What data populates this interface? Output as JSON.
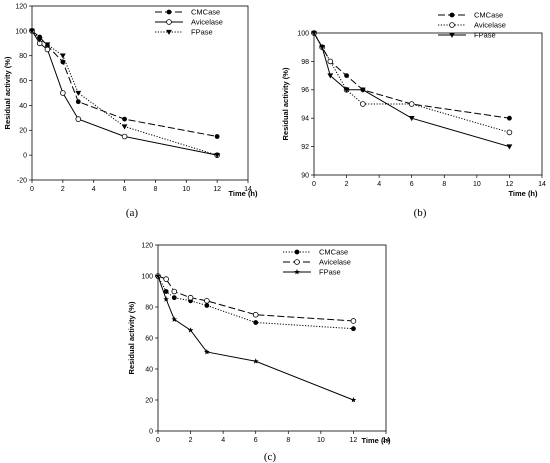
{
  "chart_data": [
    {
      "id": "a",
      "type": "line",
      "caption": "(a)",
      "xlabel": "Time (h)",
      "ylabel": "Residual activity (%)",
      "xlim": [
        0,
        14
      ],
      "ylim": [
        -20,
        120
      ],
      "xticks": [
        "0",
        "2",
        "4",
        "6",
        "8",
        "10",
        "12",
        "14"
      ],
      "yticks": [
        "-20",
        "0",
        "20",
        "40",
        "60",
        "80",
        "100",
        "120"
      ],
      "legend_position": "top-right",
      "series": [
        {
          "name": "CMCase",
          "style": "dashed",
          "marker": "filled-circle",
          "x": [
            0,
            0.5,
            1,
            2,
            3,
            6,
            12
          ],
          "y": [
            100,
            95,
            88,
            75,
            43,
            29,
            15
          ]
        },
        {
          "name": "Avicelase",
          "style": "solid",
          "marker": "open-circle",
          "x": [
            0,
            0.5,
            1,
            2,
            3,
            6,
            12
          ],
          "y": [
            100,
            90,
            85,
            50,
            29,
            15,
            0
          ]
        },
        {
          "name": "FPase",
          "style": "dotted",
          "marker": "filled-triangle-down",
          "x": [
            0,
            0.5,
            1,
            2,
            3,
            6,
            12
          ],
          "y": [
            100,
            93,
            89,
            80,
            50,
            23,
            0
          ]
        }
      ]
    },
    {
      "id": "b",
      "type": "line",
      "caption": "(b)",
      "xlabel": "Time (h)",
      "ylabel": "Residual activity (%)",
      "xlim": [
        0,
        14
      ],
      "ylim": [
        90,
        100
      ],
      "xticks": [
        "0",
        "2",
        "4",
        "6",
        "8",
        "10",
        "12",
        "14"
      ],
      "yticks": [
        "90",
        "92",
        "94",
        "96",
        "98",
        "100"
      ],
      "legend_position": "top-right",
      "series": [
        {
          "name": "CMCase",
          "style": "dashed",
          "marker": "filled-circle",
          "x": [
            0,
            0.5,
            1,
            2,
            3,
            6,
            12
          ],
          "y": [
            100,
            99,
            98,
            97,
            96,
            95,
            94
          ]
        },
        {
          "name": "Avicelase",
          "style": "dotted",
          "marker": "open-circle",
          "x": [
            0,
            0.5,
            1,
            2,
            3,
            6,
            12
          ],
          "y": [
            100,
            99,
            98,
            96,
            95,
            95,
            93
          ]
        },
        {
          "name": "FPase",
          "style": "solid",
          "marker": "filled-triangle-down",
          "x": [
            0,
            0.5,
            1,
            2,
            3,
            6,
            12
          ],
          "y": [
            100,
            99,
            97,
            96,
            96,
            94,
            92
          ]
        }
      ]
    },
    {
      "id": "c",
      "type": "line",
      "caption": "(c)",
      "xlabel": "Time (h)",
      "ylabel": "Residual activity (%)",
      "xlim": [
        0,
        14
      ],
      "ylim": [
        0,
        120
      ],
      "xticks": [
        "0",
        "2",
        "4",
        "6",
        "8",
        "10",
        "12",
        "14"
      ],
      "yticks": [
        "0",
        "20",
        "40",
        "60",
        "80",
        "100",
        "120"
      ],
      "legend_position": "top-right",
      "series": [
        {
          "name": "CMCase",
          "style": "dotted",
          "marker": "filled-circle",
          "x": [
            0,
            0.5,
            1,
            2,
            3,
            6,
            12
          ],
          "y": [
            100,
            90,
            86,
            84,
            81,
            70,
            66
          ]
        },
        {
          "name": "Avicelase",
          "style": "dashed",
          "marker": "open-circle",
          "x": [
            0,
            0.5,
            1,
            2,
            3,
            6,
            12
          ],
          "y": [
            100,
            98,
            90,
            86,
            84,
            75,
            71
          ]
        },
        {
          "name": "FPase",
          "style": "solid",
          "marker": "filled-star",
          "x": [
            0,
            0.5,
            1,
            2,
            3,
            6,
            12
          ],
          "y": [
            100,
            85,
            72,
            65,
            51,
            45,
            20
          ]
        }
      ]
    }
  ]
}
